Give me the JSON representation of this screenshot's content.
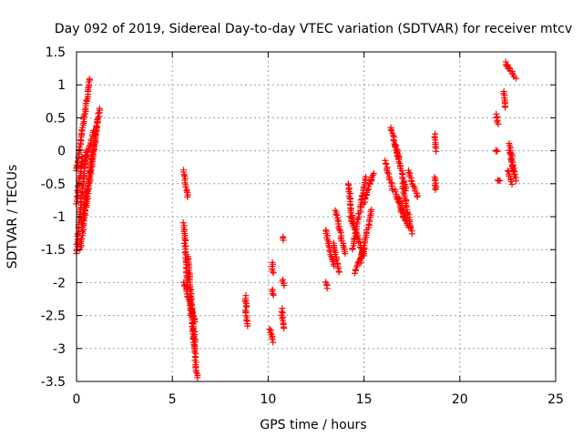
{
  "chart_data": {
    "type": "scatter",
    "title": "Day 092 of 2019, Sidereal Day-to-day VTEC variation (SDTVAR) for receiver mtcv",
    "xlabel": "GPS time / hours",
    "ylabel": "SDTVAR / TECUs",
    "xlim": [
      0,
      25
    ],
    "ylim": [
      -3.5,
      1.5
    ],
    "xticks": [
      0,
      5,
      10,
      15,
      20,
      25
    ],
    "xtick_labels": [
      "0",
      "5",
      "10",
      "15",
      "20",
      "25"
    ],
    "yticks": [
      -3.5,
      -3,
      -2.5,
      -2,
      -1.5,
      -1,
      -0.5,
      0,
      0.5,
      1,
      1.5
    ],
    "ytick_labels": [
      "-3.5",
      "-3",
      "-2.5",
      "-2",
      "-1.5",
      "-1",
      "-0.5",
      "0",
      "0.5",
      "1",
      "1.5"
    ],
    "grid": true,
    "marker": "+",
    "marker_color": "#ff0000",
    "series": [
      {
        "name": "SDTVAR",
        "segments": [
          {
            "x": [
              0.0,
              0.7
            ],
            "y": [
              -0.3,
              1.1
            ]
          },
          {
            "x": [
              0.0,
              0.5
            ],
            "y": [
              -1.55,
              0.0
            ]
          },
          {
            "x": [
              0.2,
              1.2
            ],
            "y": [
              -1.5,
              0.65
            ]
          },
          {
            "x": [
              0.3,
              1.1
            ],
            "y": [
              -1.1,
              0.45
            ]
          },
          {
            "x": [
              0.0,
              0.3
            ],
            "y": [
              -0.8,
              -0.1
            ]
          },
          {
            "x": [
              0.4,
              0.9
            ],
            "y": [
              -0.2,
              0.3
            ]
          },
          {
            "x": [
              5.6,
              5.8
            ],
            "y": [
              -0.3,
              -0.7
            ]
          },
          {
            "x": [
              5.6,
              5.8
            ],
            "y": [
              -1.1,
              -2.1
            ]
          },
          {
            "x": [
              5.6,
              6.2
            ],
            "y": [
              -2.0,
              -2.6
            ]
          },
          {
            "x": [
              5.8,
              6.2
            ],
            "y": [
              -1.6,
              -3.0
            ]
          },
          {
            "x": [
              5.9,
              6.3
            ],
            "y": [
              -2.2,
              -3.45
            ]
          },
          {
            "x": [
              8.8,
              8.9
            ],
            "y": [
              -2.2,
              -2.65
            ]
          },
          {
            "x": [
              10.1,
              10.25
            ],
            "y": [
              -2.7,
              -2.9
            ]
          },
          {
            "x": [
              10.2,
              10.3
            ],
            "y": [
              -2.1,
              -2.2
            ]
          },
          {
            "x": [
              10.2,
              10.25
            ],
            "y": [
              -1.7,
              -1.85
            ]
          },
          {
            "x": [
              10.7,
              10.8
            ],
            "y": [
              -2.4,
              -2.7
            ]
          },
          {
            "x": [
              10.75,
              10.8
            ],
            "y": [
              -1.95,
              -2.05
            ]
          },
          {
            "x": [
              10.75,
              10.8
            ],
            "y": [
              -1.3,
              -1.35
            ]
          },
          {
            "x": [
              13.0,
              13.1
            ],
            "y": [
              -2.0,
              -2.08
            ]
          },
          {
            "x": [
              13.0,
              13.4
            ],
            "y": [
              -1.2,
              -1.75
            ]
          },
          {
            "x": [
              13.4,
              13.7
            ],
            "y": [
              -1.4,
              -1.85
            ]
          },
          {
            "x": [
              13.5,
              14.0
            ],
            "y": [
              -0.9,
              -1.55
            ]
          },
          {
            "x": [
              14.2,
              14.4
            ],
            "y": [
              -0.5,
              -1.1
            ]
          },
          {
            "x": [
              14.3,
              15.0
            ],
            "y": [
              -1.0,
              -1.6
            ]
          },
          {
            "x": [
              14.4,
              15.1
            ],
            "y": [
              -1.5,
              -0.4
            ]
          },
          {
            "x": [
              14.5,
              15.0
            ],
            "y": [
              -1.85,
              -1.5
            ]
          },
          {
            "x": [
              14.8,
              15.4
            ],
            "y": [
              -1.7,
              -0.9
            ]
          },
          {
            "x": [
              15.0,
              15.4
            ],
            "y": [
              -0.8,
              -0.4
            ]
          },
          {
            "x": [
              15.3,
              15.5
            ],
            "y": [
              -0.5,
              -0.35
            ]
          },
          {
            "x": [
              16.4,
              16.8
            ],
            "y": [
              0.35,
              -0.1
            ]
          },
          {
            "x": [
              16.6,
              17.2
            ],
            "y": [
              0.1,
              -0.6
            ]
          },
          {
            "x": [
              16.1,
              16.5
            ],
            "y": [
              -0.15,
              -0.6
            ]
          },
          {
            "x": [
              16.8,
              17.3
            ],
            "y": [
              -0.7,
              -1.15
            ]
          },
          {
            "x": [
              17.0,
              17.5
            ],
            "y": [
              -0.5,
              -1.25
            ]
          },
          {
            "x": [
              17.3,
              17.8
            ],
            "y": [
              -0.3,
              -0.7
            ]
          },
          {
            "x": [
              16.6,
              17.1
            ],
            "y": [
              -0.6,
              -1.05
            ]
          },
          {
            "x": [
              18.7,
              18.75
            ],
            "y": [
              0.25,
              0.0
            ]
          },
          {
            "x": [
              18.7,
              18.75
            ],
            "y": [
              -0.4,
              -0.6
            ]
          },
          {
            "x": [
              21.9,
              22.0
            ],
            "y": [
              0.55,
              0.4
            ]
          },
          {
            "x": [
              21.9,
              21.95
            ],
            "y": [
              0.0,
              0.0
            ]
          },
          {
            "x": [
              22.0,
              22.1
            ],
            "y": [
              -0.45,
              -0.45
            ]
          },
          {
            "x": [
              22.3,
              22.35
            ],
            "y": [
              0.9,
              0.65
            ]
          },
          {
            "x": [
              22.4,
              22.5
            ],
            "y": [
              1.35,
              1.25
            ]
          },
          {
            "x": [
              22.5,
              22.9
            ],
            "y": [
              1.3,
              1.1
            ]
          },
          {
            "x": [
              22.6,
              22.9
            ],
            "y": [
              0.1,
              -0.45
            ]
          },
          {
            "x": [
              22.6,
              22.8
            ],
            "y": [
              0.0,
              -0.3
            ]
          },
          {
            "x": [
              22.5,
              22.7
            ],
            "y": [
              -0.3,
              -0.5
            ]
          }
        ]
      }
    ]
  }
}
